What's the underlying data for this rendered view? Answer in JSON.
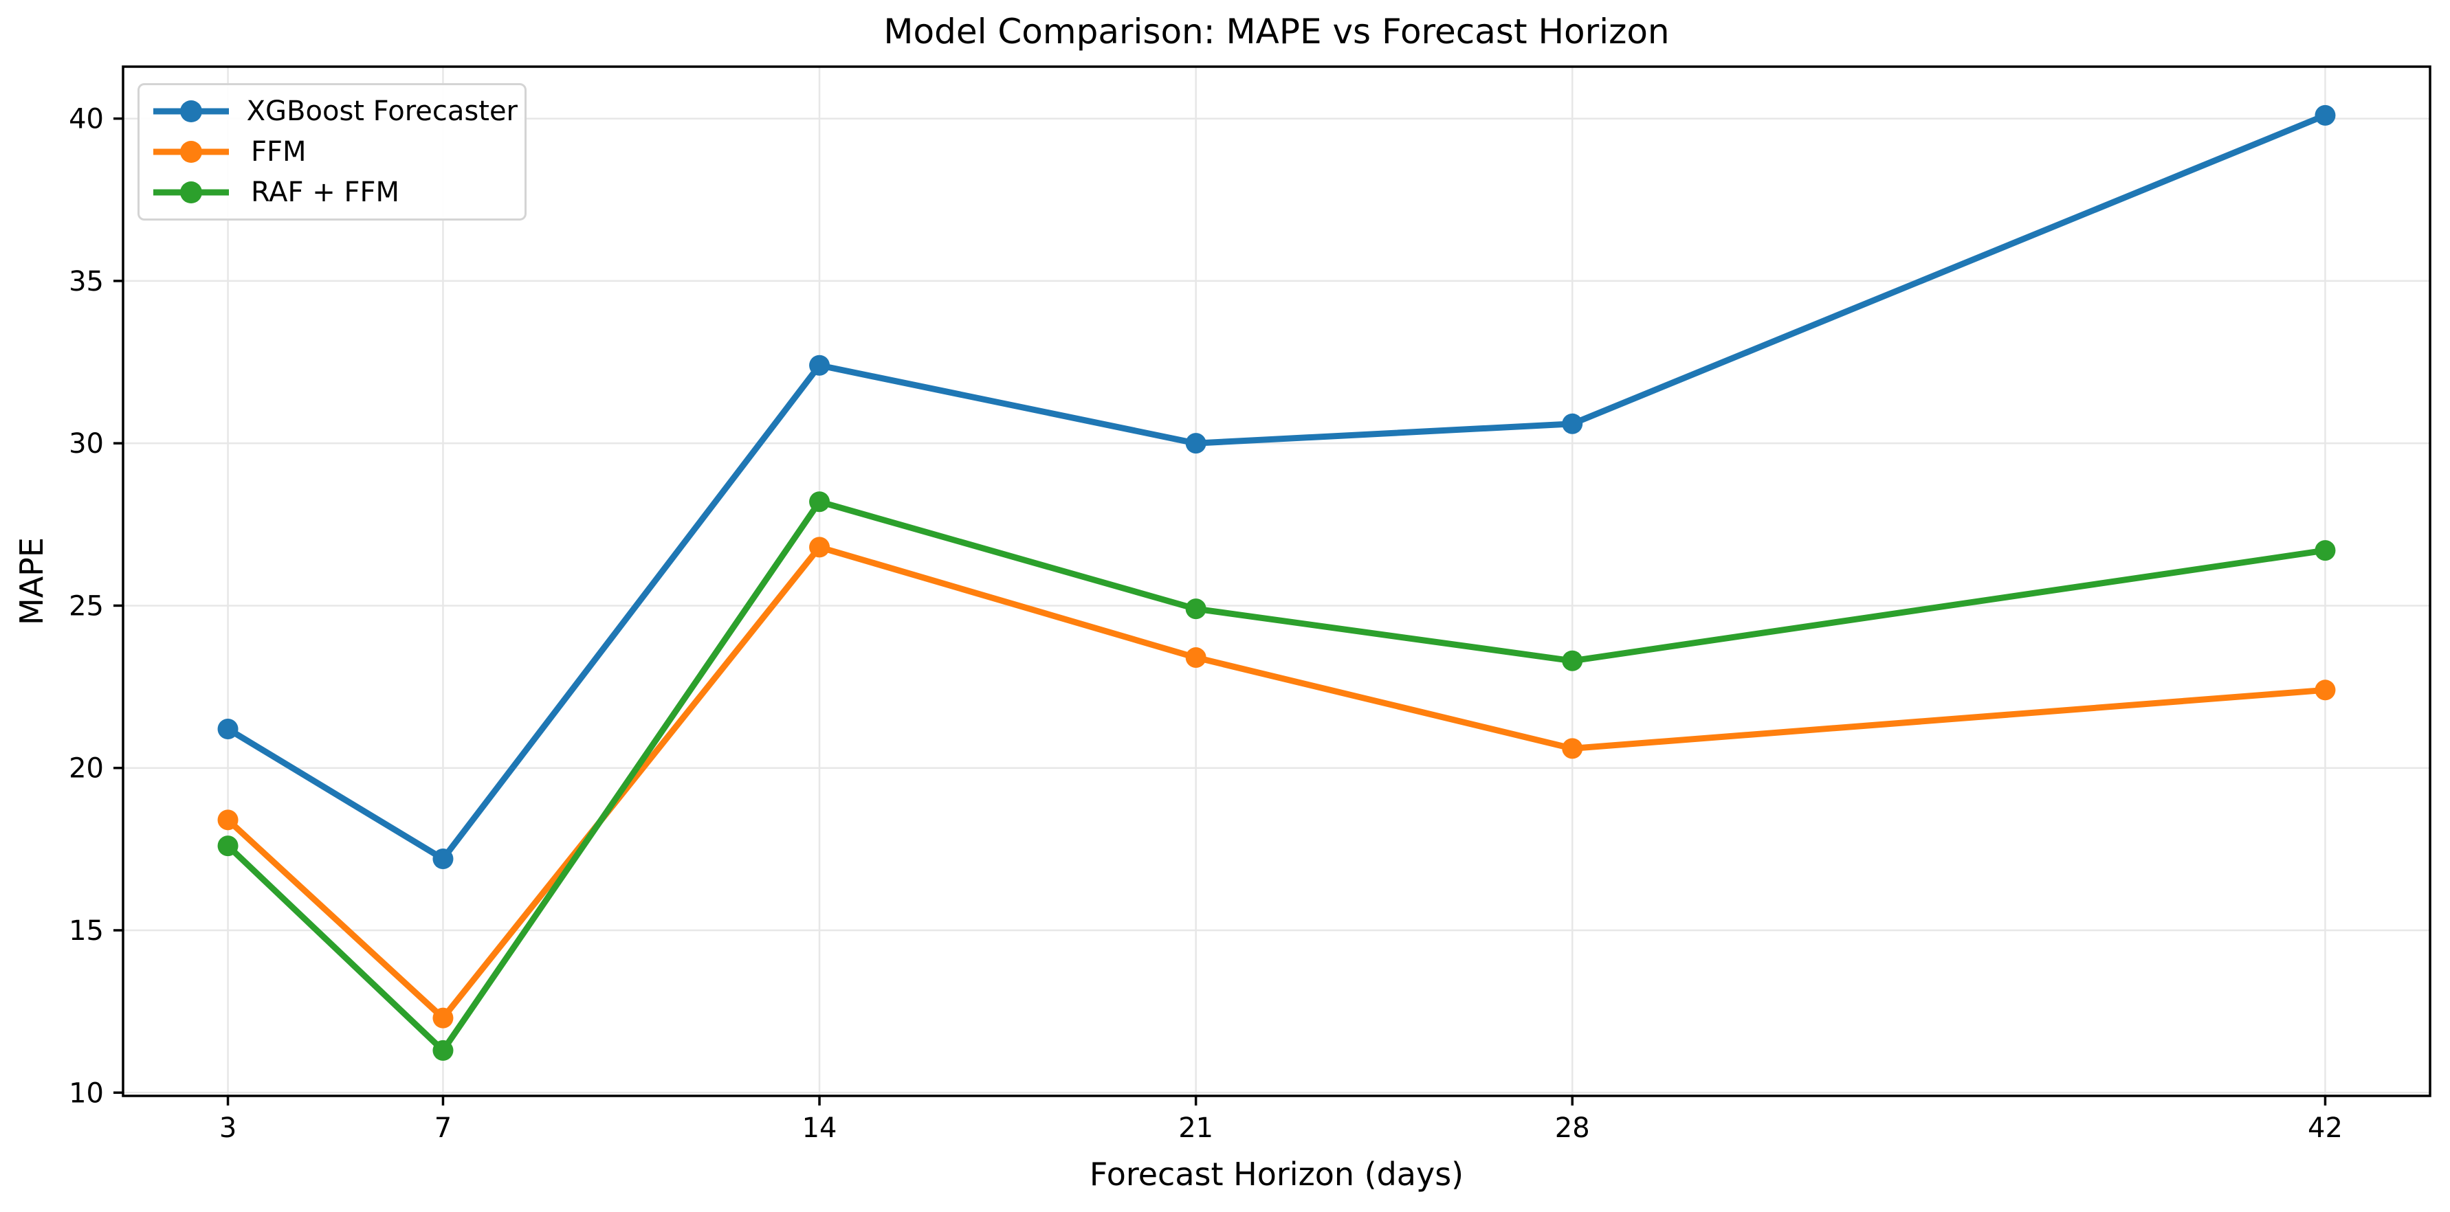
{
  "chart_data": {
    "type": "line",
    "title": "Model Comparison: MAPE vs Forecast Horizon",
    "xlabel": "Forecast Horizon (days)",
    "ylabel": "MAPE",
    "x": [
      3,
      7,
      14,
      21,
      28,
      42
    ],
    "xticks": [
      3,
      7,
      14,
      21,
      28,
      42
    ],
    "yticks": [
      10,
      15,
      20,
      25,
      30,
      35,
      40
    ],
    "xlim": [
      1.05,
      43.95
    ],
    "ylim": [
      9.9,
      41.6
    ],
    "grid": true,
    "grid_color": "#e7e7e7",
    "spine_color": "#000000",
    "legend_position": "upper left",
    "series": [
      {
        "name": "XGBoost Forecaster",
        "color": "#1f77b4",
        "marker": "circle",
        "values": [
          21.2,
          17.2,
          32.4,
          30.0,
          30.6,
          40.1
        ]
      },
      {
        "name": "FFM",
        "color": "#ff7f0e",
        "marker": "circle",
        "values": [
          18.4,
          12.3,
          26.8,
          23.4,
          20.6,
          22.4
        ]
      },
      {
        "name": "RAF + FFM",
        "color": "#2ca02c",
        "marker": "circle",
        "values": [
          17.6,
          11.3,
          28.2,
          24.9,
          23.3,
          26.7
        ]
      }
    ]
  }
}
